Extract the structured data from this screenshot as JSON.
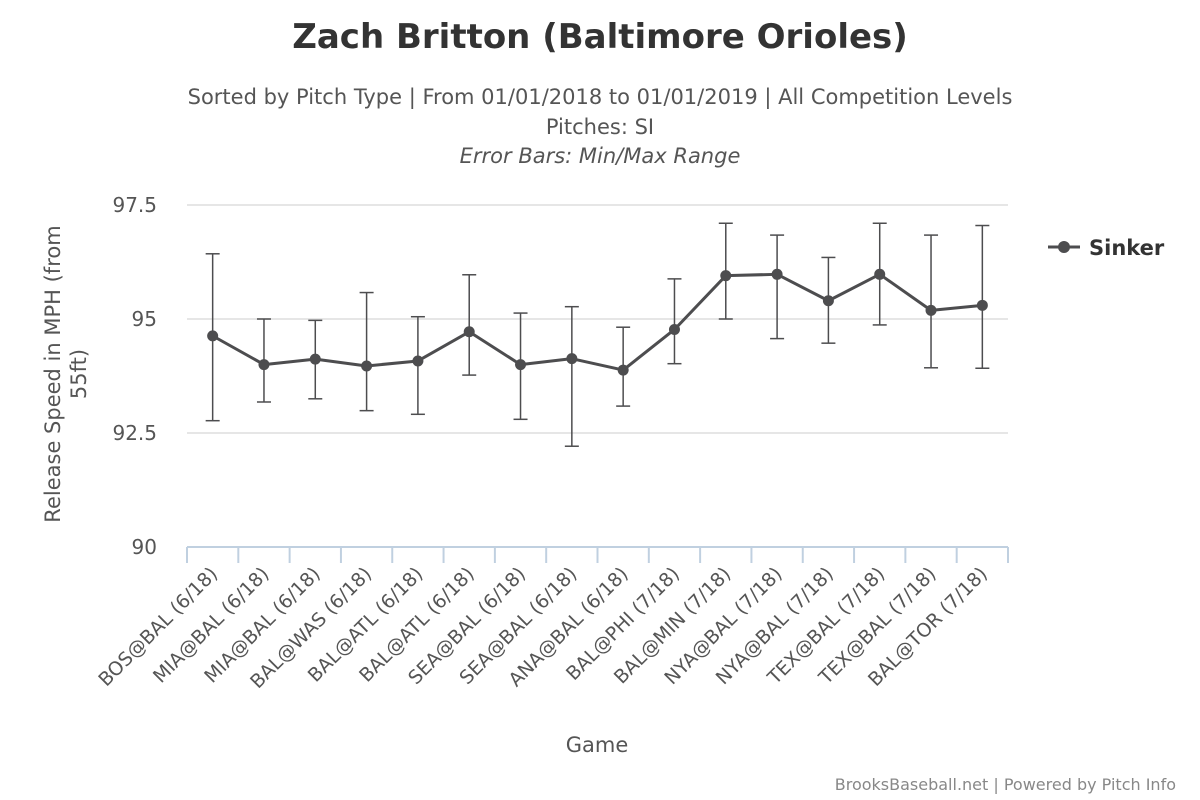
{
  "chart_data": {
    "type": "line",
    "title": "Zach Britton (Baltimore Orioles)",
    "subtitle_lines": [
      "Sorted by Pitch Type | From 01/01/2018 to 01/01/2019 | All Competition Levels",
      "Pitches: SI"
    ],
    "subtitle_note": "Error Bars: Min/Max Range",
    "xlabel": "Game",
    "ylabel": "Release Speed in MPH (from 55ft)",
    "ylim": [
      90,
      97.5
    ],
    "yticks": [
      90,
      92.5,
      95,
      97.5
    ],
    "ytick_labels": [
      "90",
      "92.5",
      "95",
      "97.5"
    ],
    "grid": true,
    "legend_position": "right",
    "categories": [
      "BOS@BAL (6/18)",
      "MIA@BAL (6/18)",
      "MIA@BAL (6/18)",
      "BAL@WAS (6/18)",
      "BAL@ATL (6/18)",
      "BAL@ATL (6/18)",
      "SEA@BAL (6/18)",
      "SEA@BAL (6/18)",
      "ANA@BAL (6/18)",
      "BAL@PHI (7/18)",
      "BAL@MIN (7/18)",
      "NYA@BAL (7/18)",
      "NYA@BAL (7/18)",
      "TEX@BAL (7/18)",
      "TEX@BAL (7/18)",
      "BAL@TOR (7/18)"
    ],
    "series": [
      {
        "name": "Sinker",
        "color": "#4d4d4f",
        "values": [
          94.63,
          94.0,
          94.12,
          93.97,
          94.08,
          94.72,
          94.0,
          94.13,
          93.88,
          94.77,
          95.95,
          95.98,
          95.4,
          95.98,
          95.19,
          95.3
        ],
        "min": [
          92.77,
          93.18,
          93.25,
          92.99,
          92.91,
          93.77,
          92.8,
          92.21,
          93.09,
          94.02,
          95.0,
          94.57,
          94.47,
          94.87,
          93.93,
          93.92
        ],
        "max": [
          96.43,
          95.0,
          94.97,
          95.58,
          95.05,
          95.97,
          95.13,
          95.27,
          94.82,
          95.88,
          97.1,
          96.84,
          96.35,
          97.1,
          96.84,
          97.05
        ]
      }
    ]
  },
  "credits": "BrooksBaseball.net | Powered by Pitch Info"
}
